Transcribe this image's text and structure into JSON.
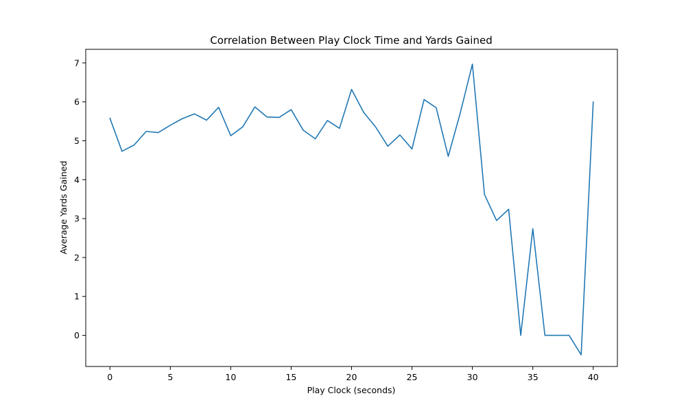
{
  "chart_data": {
    "type": "line",
    "title": "Correlation Between Play Clock Time and Yards Gained",
    "xlabel": "Play Clock (seconds)",
    "ylabel": "Average Yards Gained",
    "xlim": [
      -2,
      42
    ],
    "ylim": [
      -0.8,
      7.35
    ],
    "xticks": [
      0,
      5,
      10,
      15,
      20,
      25,
      30,
      35,
      40
    ],
    "yticks": [
      0,
      1,
      2,
      3,
      4,
      5,
      6,
      7
    ],
    "grid": false,
    "legend": "none",
    "series": [
      {
        "color": "#1f77b4",
        "x": [
          0,
          1,
          2,
          3,
          4,
          5,
          6,
          7,
          8,
          9,
          10,
          11,
          12,
          13,
          14,
          15,
          16,
          17,
          18,
          19,
          20,
          21,
          22,
          23,
          24,
          25,
          26,
          27,
          28,
          29,
          30,
          31,
          32,
          33,
          34,
          35,
          36,
          37,
          38,
          39,
          40
        ],
        "y": [
          5.58,
          4.73,
          4.89,
          5.24,
          5.21,
          5.4,
          5.57,
          5.69,
          5.53,
          5.86,
          5.13,
          5.36,
          5.87,
          5.61,
          5.6,
          5.8,
          5.27,
          5.05,
          5.52,
          5.32,
          6.32,
          5.73,
          5.35,
          4.86,
          5.15,
          4.79,
          6.06,
          5.85,
          4.6,
          5.72,
          6.97,
          3.62,
          2.95,
          3.24,
          0.0,
          2.74,
          0.0,
          0.0,
          0.0,
          -0.5,
          6.0
        ]
      }
    ]
  }
}
